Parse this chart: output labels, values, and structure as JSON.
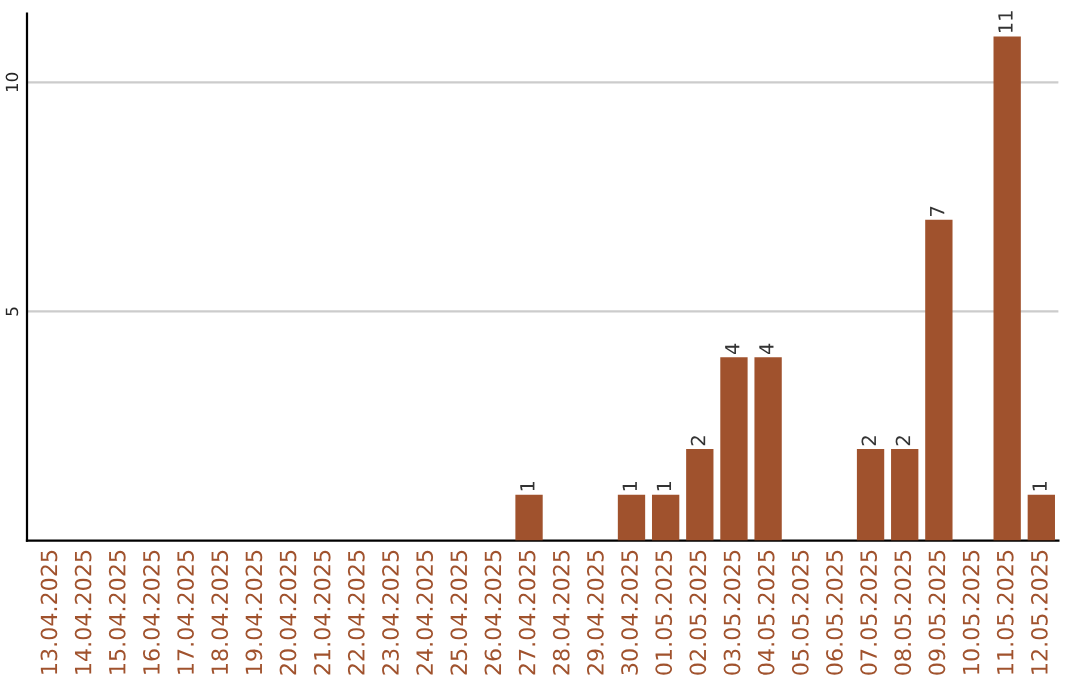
{
  "chart_data": {
    "type": "bar",
    "categories": [
      "13.04.2025",
      "14.04.2025",
      "15.04.2025",
      "16.04.2025",
      "17.04.2025",
      "18.04.2025",
      "19.04.2025",
      "20.04.2025",
      "21.04.2025",
      "22.04.2025",
      "23.04.2025",
      "24.04.2025",
      "25.04.2025",
      "26.04.2025",
      "27.04.2025",
      "28.04.2025",
      "29.04.2025",
      "30.04.2025",
      "01.05.2025",
      "02.05.2025",
      "03.05.2025",
      "04.05.2025",
      "05.05.2025",
      "06.05.2025",
      "07.05.2025",
      "08.05.2025",
      "09.05.2025",
      "10.05.2025",
      "11.05.2025",
      "12.05.2025"
    ],
    "values": [
      0,
      0,
      0,
      0,
      0,
      0,
      0,
      0,
      0,
      0,
      0,
      0,
      0,
      0,
      1,
      0,
      0,
      1,
      1,
      2,
      4,
      4,
      0,
      0,
      2,
      2,
      7,
      0,
      11,
      1
    ],
    "value_labels": [
      null,
      null,
      null,
      null,
      null,
      null,
      null,
      null,
      null,
      null,
      null,
      null,
      null,
      null,
      "1",
      null,
      null,
      "1",
      "1",
      "2",
      "4",
      "4",
      null,
      null,
      "2",
      "2",
      "7",
      null,
      "11",
      "1"
    ],
    "color": "#a0522d",
    "ylim": [
      0,
      11.5
    ],
    "yticks": [
      5,
      10
    ],
    "grid": "y"
  }
}
